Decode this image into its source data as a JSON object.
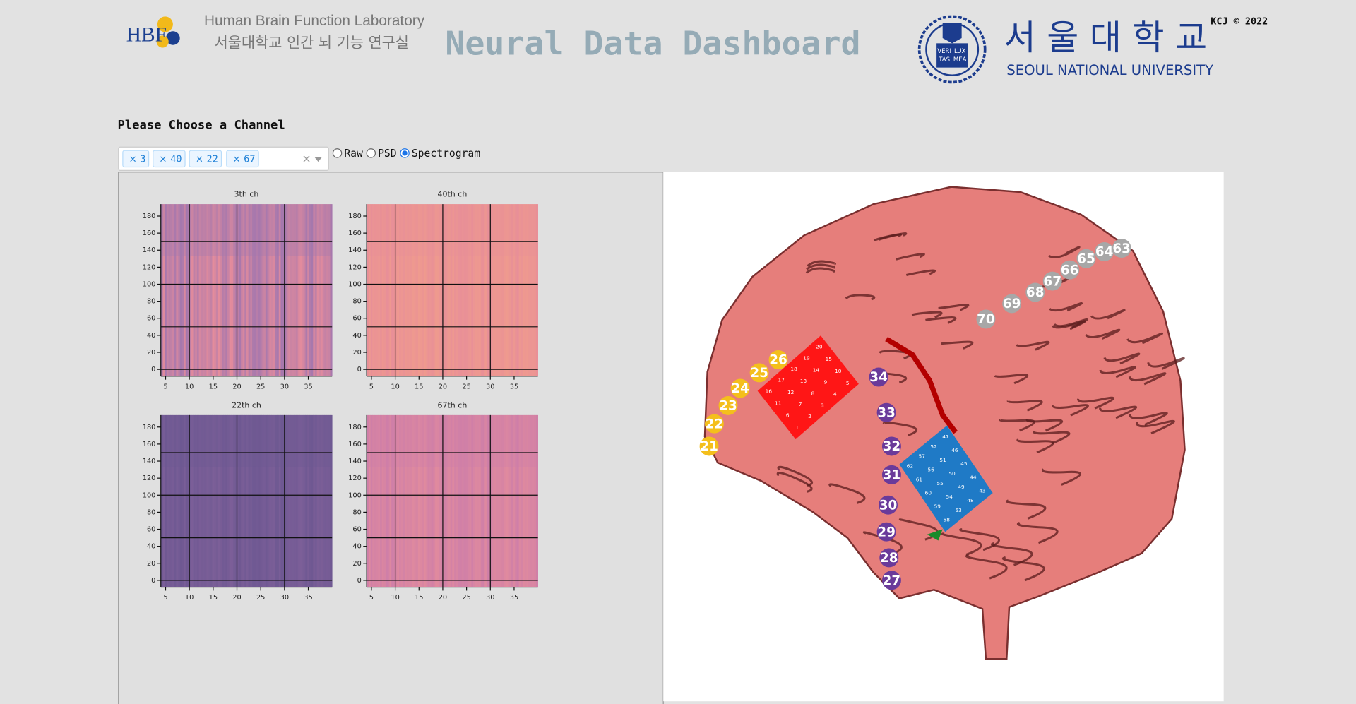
{
  "header": {
    "logo_text": "HBF",
    "lab_name": "Human Brain Function Laboratory",
    "lab_name_korean": "서울대학교 인간 뇌 기능 연구실",
    "title": "Neural Data Dashboard",
    "emblem_text": [
      "VERI",
      "TAS",
      "LUX",
      "MEA"
    ],
    "university_korean": "서 울 대 학 교",
    "university": "SEOUL NATIONAL UNIVERSITY",
    "credit": "KCJ © 2022"
  },
  "controls": {
    "prompt": "Please Choose a Channel",
    "remove_symbol": "×",
    "clear_symbol": "×",
    "selected_channels": [
      "3",
      "40",
      "22",
      "67"
    ],
    "modes": [
      "Raw",
      "PSD",
      "Spectrogram"
    ],
    "selected_mode": "Spectrogram"
  },
  "chart_data": [
    {
      "type": "heatmap",
      "title": "3th ch",
      "colors": [
        "#a477ae",
        "#e48c9c"
      ],
      "xlim": [
        4,
        40
      ],
      "ylim": [
        -8,
        194
      ],
      "xticks": [
        5,
        10,
        15,
        20,
        25,
        30,
        35
      ],
      "yticks": [
        0,
        20,
        40,
        60,
        80,
        100,
        120,
        140,
        160,
        180
      ],
      "grid_x": [
        10,
        20,
        30
      ],
      "grid_y": [
        0,
        50,
        100,
        150
      ]
    },
    {
      "type": "heatmap",
      "title": "40th ch",
      "colors": [
        "#e88f98",
        "#ef9a8e"
      ],
      "xlim": [
        4,
        40
      ],
      "ylim": [
        -8,
        194
      ],
      "xticks": [
        5,
        10,
        15,
        20,
        25,
        30,
        35
      ],
      "yticks": [
        0,
        20,
        40,
        60,
        80,
        100,
        120,
        140,
        160,
        180
      ],
      "grid_x": [
        10,
        20,
        30
      ],
      "grid_y": [
        0,
        50,
        100,
        150
      ]
    },
    {
      "type": "heatmap",
      "title": "22th ch",
      "colors": [
        "#6e5892",
        "#7c5f98"
      ],
      "xlim": [
        4,
        40
      ],
      "ylim": [
        -8,
        194
      ],
      "xticks": [
        5,
        10,
        15,
        20,
        25,
        30,
        35
      ],
      "yticks": [
        0,
        20,
        40,
        60,
        80,
        100,
        120,
        140,
        160,
        180
      ],
      "grid_x": [
        10,
        20,
        30
      ],
      "grid_y": [
        0,
        50,
        100,
        150
      ]
    },
    {
      "type": "heatmap",
      "title": "67th ch",
      "colors": [
        "#cf7fa8",
        "#e08a9e"
      ],
      "xlim": [
        4,
        40
      ],
      "ylim": [
        -8,
        194
      ],
      "xticks": [
        5,
        10,
        15,
        20,
        25,
        30,
        35
      ],
      "yticks": [
        0,
        20,
        40,
        60,
        80,
        100,
        120,
        140,
        160,
        180
      ],
      "grid_x": [
        10,
        20,
        30
      ],
      "grid_y": [
        0,
        50,
        100,
        150
      ]
    }
  ],
  "brain": {
    "color": "#e67e7b",
    "groups": [
      {
        "color": "#f4bf1c",
        "labels": [
          "21",
          "22",
          "23",
          "24",
          "25",
          "26"
        ]
      },
      {
        "color": "#6a3a9a",
        "labels": [
          "34",
          "33",
          "32",
          "31",
          "30",
          "29",
          "28",
          "27"
        ]
      },
      {
        "color": "#a7a7a7",
        "labels": [
          "63",
          "64",
          "65",
          "66",
          "67",
          "68",
          "69",
          "70"
        ]
      }
    ],
    "grids": [
      {
        "color": "#ff1616",
        "labels": [
          "20",
          "15",
          "10",
          "5",
          "19",
          "14",
          "9",
          "4",
          "18",
          "13",
          "8",
          "3",
          "17",
          "12",
          "7",
          "2",
          "16",
          "11",
          "6",
          "1"
        ]
      },
      {
        "color": "#1f7ac6",
        "labels": [
          "47",
          "46",
          "45",
          "44",
          "43",
          "52",
          "51",
          "50",
          "49",
          "48",
          "57",
          "56",
          "55",
          "54",
          "53",
          "62",
          "61",
          "60",
          "59",
          "58"
        ]
      }
    ]
  }
}
